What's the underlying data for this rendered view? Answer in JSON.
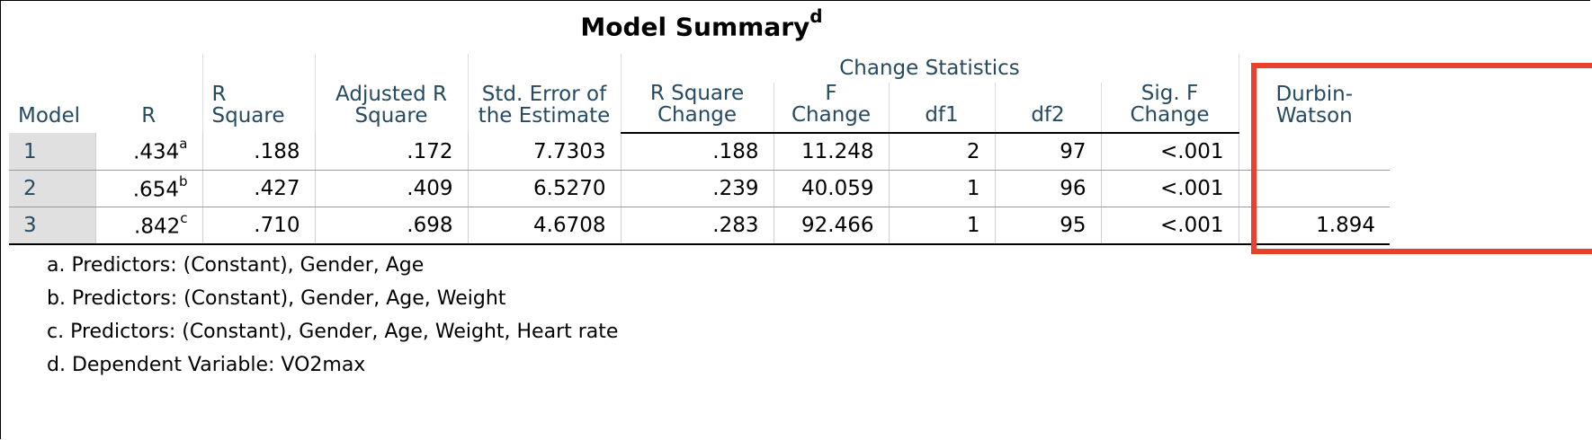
{
  "title": "Model Summary",
  "title_superscript": "d",
  "headers": {
    "model": "Model",
    "r": "R",
    "r_square": "R Square",
    "adj_r_square": "Adjusted R Square",
    "std_error": "Std. Error of the Estimate",
    "change_statistics": "Change Statistics",
    "r_square_change": "R Square Change",
    "f_change": "F Change",
    "df1": "df1",
    "df2": "df2",
    "sig_f_change": "Sig. F Change",
    "durbin_watson": "Durbin-Watson"
  },
  "rows": [
    {
      "model": "1",
      "r": ".434",
      "r_sup": "a",
      "r_square": ".188",
      "adj_r_square": ".172",
      "std_error": "7.7303",
      "r_square_change": ".188",
      "f_change": "11.248",
      "df1": "2",
      "df2": "97",
      "sig_f_change": "<.001",
      "durbin_watson": ""
    },
    {
      "model": "2",
      "r": ".654",
      "r_sup": "b",
      "r_square": ".427",
      "adj_r_square": ".409",
      "std_error": "6.5270",
      "r_square_change": ".239",
      "f_change": "40.059",
      "df1": "1",
      "df2": "96",
      "sig_f_change": "<.001",
      "durbin_watson": ""
    },
    {
      "model": "3",
      "r": ".842",
      "r_sup": "c",
      "r_square": ".710",
      "adj_r_square": ".698",
      "std_error": "4.6708",
      "r_square_change": ".283",
      "f_change": "92.466",
      "df1": "1",
      "df2": "95",
      "sig_f_change": "<.001",
      "durbin_watson": "1.894"
    }
  ],
  "footnotes": [
    "a. Predictors: (Constant), Gender, Age",
    "b. Predictors: (Constant), Gender, Age, Weight",
    "c. Predictors: (Constant), Gender, Age, Weight, Heart rate",
    "d. Dependent Variable: VO2max"
  ],
  "highlight_color": "#e8412f"
}
